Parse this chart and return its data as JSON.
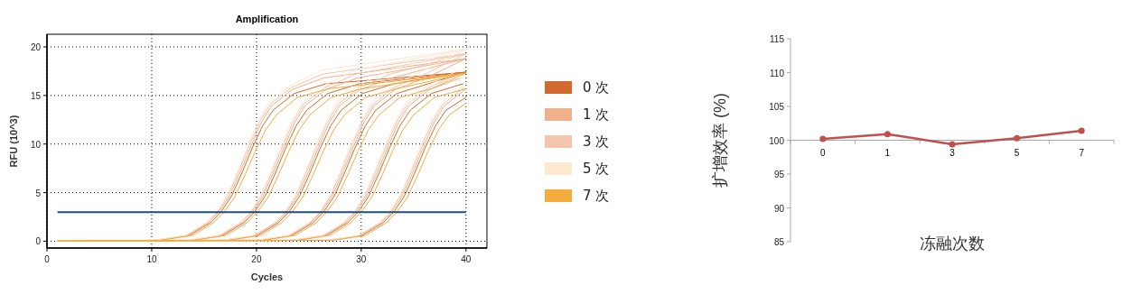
{
  "chart_data": [
    {
      "type": "line",
      "title": "Amplification",
      "xlabel": "Cycles",
      "ylabel": "RFU (10^3)",
      "xlim": [
        0,
        42
      ],
      "ylim": [
        -0.7,
        21.3
      ],
      "xticks": [
        0,
        10,
        20,
        30,
        40
      ],
      "yticks": [
        0,
        5,
        10,
        15,
        20
      ],
      "grid": true,
      "legend": "right",
      "ref_lines": [
        {
          "axis": "y",
          "value": 3,
          "color": "#1f4e79"
        }
      ],
      "series": [
        {
          "name": "0 次",
          "color": "#d2692f",
          "x": [
            1,
            10.6,
            13.6,
            15.6,
            16.6,
            17.6,
            18.6,
            19.6,
            20.6,
            21.6,
            23.6,
            26.6,
            40,
            null,
            1,
            13.8,
            16.8,
            18.8,
            19.8,
            20.8,
            21.8,
            22.8,
            23.8,
            24.8,
            26.8,
            29.8,
            40,
            null,
            1,
            17.1,
            20.1,
            22.1,
            23.1,
            24.1,
            25.1,
            26.1,
            27.1,
            28.1,
            30.1,
            33.1,
            40,
            null,
            1,
            20.4,
            23.4,
            25.4,
            26.4,
            27.4,
            28.4,
            29.4,
            30.4,
            31.4,
            33.4,
            36.4,
            40,
            null,
            1,
            23.7,
            26.7,
            28.7,
            29.7,
            30.7,
            31.7,
            32.7,
            33.7,
            34.7,
            36.7,
            39.7,
            null,
            1,
            27.1,
            30.1,
            32.1,
            33.1,
            34.1,
            35.1,
            36.1,
            37.1,
            38.1,
            40
          ],
          "values": [
            0,
            0.1,
            0.6,
            1.9,
            3,
            4.6,
            7,
            9.6,
            11.9,
            13.5,
            15.2,
            16.2,
            17.4,
            null,
            0,
            0.1,
            0.6,
            1.9,
            3,
            4.6,
            7,
            9.6,
            11.9,
            13.5,
            15.2,
            16.2,
            17.4,
            null,
            0,
            0.1,
            0.6,
            1.9,
            3,
            4.6,
            7,
            9.6,
            11.9,
            13.5,
            15.2,
            16.2,
            17.4,
            null,
            0,
            0.1,
            0.6,
            1.9,
            3,
            4.6,
            7,
            9.6,
            11.9,
            13.5,
            15.2,
            16.2,
            17.4,
            null,
            0,
            0.1,
            0.6,
            1.9,
            3,
            4.6,
            7,
            9.6,
            11.9,
            13.5,
            15.2,
            16.2,
            null,
            0,
            0.1,
            0.6,
            1.9,
            3,
            4.6,
            7,
            9.6,
            11.9,
            13.5,
            14.8
          ]
        },
        {
          "name": "1 次",
          "color": "#f0b08a",
          "x": [
            1,
            10.4,
            13.4,
            15.4,
            16.4,
            17.4,
            18.4,
            19.4,
            20.4,
            21.4,
            23.4,
            26.4,
            40,
            null,
            1,
            13.6,
            16.6,
            18.6,
            19.6,
            20.6,
            21.6,
            22.6,
            23.6,
            24.6,
            26.6,
            29.6,
            40,
            null,
            1,
            16.9,
            19.9,
            21.9,
            22.9,
            23.9,
            24.9,
            25.9,
            26.9,
            27.9,
            29.9,
            32.9,
            40,
            null,
            1,
            20.2,
            23.2,
            25.2,
            26.2,
            27.2,
            28.2,
            29.2,
            30.2,
            31.2,
            33.2,
            36.2,
            40,
            null,
            1,
            23.5,
            26.5,
            28.5,
            29.5,
            30.5,
            31.5,
            32.5,
            33.5,
            34.5,
            36.5,
            39.5,
            null,
            1,
            26.9,
            29.9,
            31.9,
            32.9,
            33.9,
            34.9,
            35.9,
            36.9,
            37.9,
            39.9
          ],
          "values": [
            0,
            0.1,
            0.6,
            1.9,
            3,
            4.6,
            7,
            9.6,
            12.1,
            13.9,
            15.6,
            16.8,
            18.8,
            null,
            0,
            0.1,
            0.6,
            1.9,
            3,
            4.6,
            7,
            9.6,
            12.1,
            13.9,
            15.6,
            16.8,
            18.8,
            null,
            0,
            0.1,
            0.6,
            1.9,
            3,
            4.6,
            7,
            9.6,
            12.1,
            13.9,
            15.6,
            16.8,
            18.8,
            null,
            0,
            0.1,
            0.6,
            1.9,
            3,
            4.6,
            7,
            9.6,
            12.1,
            13.9,
            15.6,
            16.8,
            18.8,
            null,
            0,
            0.1,
            0.6,
            1.9,
            3,
            4.6,
            7,
            9.6,
            12.1,
            13.9,
            15.6,
            16.8,
            null,
            0,
            0.1,
            0.6,
            1.9,
            3,
            4.6,
            7,
            9.6,
            12.1,
            13.9,
            15.6
          ]
        },
        {
          "name": "3 次",
          "color": "#f3c5ac",
          "x": [
            1,
            10.3,
            13.3,
            15.3,
            16.3,
            17.3,
            18.3,
            19.3,
            20.3,
            21.3,
            23.3,
            26.3,
            40,
            null,
            1,
            13.5,
            16.5,
            18.5,
            19.5,
            20.5,
            21.5,
            22.5,
            23.5,
            24.5,
            26.5,
            29.5,
            40,
            null,
            1,
            16.8,
            19.8,
            21.8,
            22.8,
            23.8,
            24.8,
            25.8,
            26.8,
            27.8,
            29.8,
            32.8,
            40,
            null,
            1,
            20.1,
            23.1,
            25.1,
            26.1,
            27.1,
            28.1,
            29.1,
            30.1,
            31.1,
            33.1,
            36.1,
            40,
            null,
            1,
            23.4,
            26.4,
            28.4,
            29.4,
            30.4,
            31.4,
            32.4,
            33.4,
            34.4,
            36.4,
            39.4,
            null,
            1,
            26.8,
            29.8,
            31.8,
            32.8,
            33.8,
            34.8,
            35.8,
            36.8,
            37.8,
            39.8
          ],
          "values": [
            0,
            0.1,
            0.6,
            1.9,
            3,
            4.7,
            7.2,
            9.8,
            12.3,
            14.1,
            15.8,
            17.2,
            19.3,
            null,
            0,
            0.1,
            0.6,
            1.9,
            3,
            4.7,
            7.2,
            9.8,
            12.3,
            14.1,
            15.8,
            17.2,
            19.3,
            null,
            0,
            0.1,
            0.6,
            1.9,
            3,
            4.7,
            7.2,
            9.8,
            12.3,
            14.1,
            15.8,
            17.2,
            19.3,
            null,
            0,
            0.1,
            0.6,
            1.9,
            3,
            4.7,
            7.2,
            9.8,
            12.3,
            14.1,
            15.8,
            17.2,
            19.3,
            null,
            0,
            0.1,
            0.6,
            1.9,
            3,
            4.7,
            7.2,
            9.8,
            12.3,
            14.1,
            15.8,
            17.2,
            null,
            0,
            0.1,
            0.6,
            1.9,
            3,
            4.7,
            7.2,
            9.8,
            12.3,
            14.1,
            15.8
          ]
        },
        {
          "name": "5 次",
          "color": "#fde8d0",
          "x": [
            1,
            10.2,
            13.2,
            15.2,
            16.2,
            17.2,
            18.2,
            19.2,
            20.2,
            21.2,
            23.2,
            26.2,
            40,
            null,
            1,
            13.4,
            16.4,
            18.4,
            19.4,
            20.4,
            21.4,
            22.4,
            23.4,
            24.4,
            26.4,
            29.4,
            40,
            null,
            1,
            16.7,
            19.7,
            21.7,
            22.7,
            23.7,
            24.7,
            25.7,
            26.7,
            27.7,
            29.7,
            32.7,
            40,
            null,
            1,
            20,
            23,
            25,
            26,
            27,
            28,
            29,
            30,
            31,
            33,
            36,
            40,
            null,
            1,
            23.3,
            26.3,
            28.3,
            29.3,
            30.3,
            31.3,
            32.3,
            33.3,
            34.3,
            36.3,
            39.3,
            null,
            1,
            26.7,
            29.7,
            31.7,
            32.7,
            33.7,
            34.7,
            35.7,
            36.7,
            37.7,
            39.7
          ],
          "values": [
            0,
            0.1,
            0.6,
            1.9,
            3,
            4.7,
            7.2,
            9.9,
            12.4,
            14.3,
            16,
            17.6,
            19.8,
            null,
            0,
            0.1,
            0.6,
            1.9,
            3,
            4.7,
            7.2,
            9.9,
            12.4,
            14.3,
            16,
            17.6,
            19.8,
            null,
            0,
            0.1,
            0.6,
            1.9,
            3,
            4.7,
            7.2,
            9.9,
            12.4,
            14.3,
            16,
            17.6,
            19.8,
            null,
            0,
            0.1,
            0.6,
            1.9,
            3,
            4.7,
            7.2,
            9.9,
            12.4,
            14.3,
            16,
            17.6,
            19.8,
            null,
            0,
            0.1,
            0.6,
            1.9,
            3,
            4.7,
            7.2,
            9.9,
            12.4,
            14.3,
            16,
            17.6,
            null,
            0,
            0.1,
            0.6,
            1.9,
            3,
            4.7,
            7.2,
            9.9,
            12.4,
            14.3,
            16
          ]
        },
        {
          "name": "7 次",
          "color": "#f4ac3c",
          "x": [
            1,
            10.9,
            13.9,
            15.9,
            16.9,
            17.9,
            18.9,
            19.9,
            20.9,
            21.9,
            23.9,
            26.9,
            40,
            null,
            1,
            14.1,
            17.1,
            19.1,
            20.1,
            21.1,
            22.1,
            23.1,
            24.1,
            25.1,
            27.1,
            30.1,
            40,
            null,
            1,
            17.4,
            20.4,
            22.4,
            23.4,
            24.4,
            25.4,
            26.4,
            27.4,
            28.4,
            30.4,
            33.4,
            40,
            null,
            1,
            20.7,
            23.7,
            25.7,
            26.7,
            27.7,
            28.7,
            29.7,
            30.7,
            31.7,
            33.7,
            36.7,
            40,
            null,
            1,
            24,
            27,
            29,
            30,
            31,
            32,
            33,
            34,
            35,
            37,
            40,
            null,
            1,
            27.4,
            30.4,
            32.4,
            33.4,
            34.4,
            35.4,
            36.4,
            37.4,
            38.4,
            40
          ],
          "values": [
            0,
            0.1,
            0.6,
            1.9,
            3,
            4.5,
            6.8,
            9.3,
            11.5,
            13,
            14.8,
            15.7,
            17.3,
            null,
            0,
            0.1,
            0.6,
            1.9,
            3,
            4.5,
            6.8,
            9.3,
            11.5,
            13,
            14.8,
            15.7,
            17.3,
            null,
            0,
            0.1,
            0.6,
            1.9,
            3,
            4.5,
            6.8,
            9.3,
            11.5,
            13,
            14.8,
            15.7,
            17.3,
            null,
            0,
            0.1,
            0.6,
            1.9,
            3,
            4.5,
            6.8,
            9.3,
            11.5,
            13,
            14.8,
            15.7,
            17.3,
            null,
            0,
            0.1,
            0.6,
            1.9,
            3,
            4.5,
            6.8,
            9.3,
            11.5,
            13,
            14.8,
            15.7,
            null,
            0,
            0.1,
            0.6,
            1.9,
            3,
            4.5,
            6.8,
            9.3,
            11.5,
            13,
            14.2
          ]
        }
      ]
    },
    {
      "type": "line",
      "xlabel": "冻融次数",
      "ylabel": "扩增效率 (%)",
      "categories": [
        "0",
        "1",
        "3",
        "5",
        "7"
      ],
      "values": [
        100.2,
        100.9,
        99.4,
        100.3,
        101.4
      ],
      "color": "#c0504d",
      "marker": "circle",
      "ylim": [
        85,
        115
      ],
      "yticks": [
        85,
        90,
        95,
        100,
        105,
        110,
        115
      ]
    }
  ]
}
